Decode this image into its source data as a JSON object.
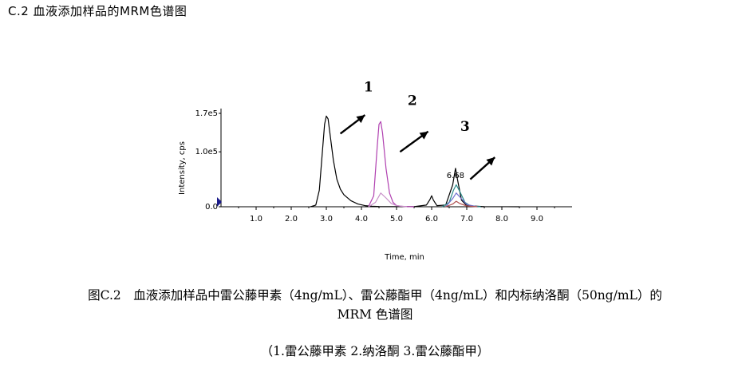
{
  "header": {
    "title": "C.2   血液添加样品的MRM色谱图"
  },
  "chart_data": {
    "type": "line",
    "xlabel": "Time, min",
    "ylabel": "Intensity, cps",
    "xlim": [
      0,
      10
    ],
    "ylim": [
      0,
      170000
    ],
    "x_ticks": [
      "1.0",
      "2.0",
      "3.0",
      "4.0",
      "5.0",
      "6.0",
      "7.0",
      "8.0",
      "9.0"
    ],
    "y_ticks": [
      {
        "value": 0,
        "label": "0.0"
      },
      {
        "value": 100000,
        "label": "1.0e5"
      },
      {
        "value": 170000,
        "label": "1.7e5"
      }
    ],
    "series": [
      {
        "color": "#000000",
        "x": [
          2.55,
          2.7,
          2.8,
          2.9,
          2.95,
          3.0,
          3.05,
          3.1,
          3.2,
          3.3,
          3.4,
          3.5,
          3.7,
          3.9,
          4.1,
          4.3,
          4.5,
          4.7,
          5.0,
          5.5,
          5.85,
          5.95,
          6.0,
          6.05,
          6.15,
          6.4,
          6.6,
          6.68,
          6.75,
          6.85,
          7.0,
          7.5,
          8.5
        ],
        "y": [
          0,
          3000,
          30000,
          110000,
          150000,
          165000,
          160000,
          135000,
          85000,
          50000,
          32000,
          22000,
          11000,
          5000,
          2000,
          800,
          500,
          300,
          200,
          200,
          3000,
          13000,
          20000,
          12000,
          2000,
          3000,
          40000,
          70000,
          45000,
          12000,
          2000,
          300,
          0
        ]
      },
      {
        "color": "#b040b0",
        "x": [
          4.2,
          4.35,
          4.45,
          4.5,
          4.55,
          4.6,
          4.7,
          4.8,
          4.9,
          5.0,
          5.2,
          5.5
        ],
        "y": [
          0,
          20000,
          110000,
          150000,
          155000,
          135000,
          70000,
          25000,
          8000,
          2000,
          500,
          0
        ]
      },
      {
        "color": "#c890c8",
        "x": [
          4.2,
          4.4,
          4.55,
          4.7,
          4.85,
          5.0,
          5.3
        ],
        "y": [
          0,
          8000,
          25000,
          16000,
          6000,
          2000,
          0
        ]
      },
      {
        "color": "#2a8a8a",
        "x": [
          6.3,
          6.5,
          6.62,
          6.7,
          6.8,
          6.95,
          7.1,
          7.4
        ],
        "y": [
          0,
          8000,
          30000,
          40000,
          28000,
          8000,
          1500,
          0
        ]
      },
      {
        "color": "#7070d0",
        "x": [
          6.4,
          6.6,
          6.7,
          6.8,
          7.0,
          7.3
        ],
        "y": [
          0,
          15000,
          25000,
          18000,
          4000,
          0
        ]
      },
      {
        "color": "#b05050",
        "x": [
          6.4,
          6.6,
          6.7,
          6.8,
          7.0,
          7.3
        ],
        "y": [
          0,
          5000,
          10000,
          6000,
          1500,
          0
        ]
      }
    ],
    "peak_labels": [
      {
        "text": "1",
        "x": 4.2,
        "y": 2.1
      },
      {
        "text": "2",
        "x": 5.45,
        "y": 1.85
      },
      {
        "text": "3",
        "x": 6.95,
        "y": 1.38
      }
    ],
    "arrows": [
      {
        "from": [
          3.4,
          133000
        ],
        "to": [
          4.1,
          167000
        ]
      },
      {
        "from": [
          5.1,
          100000
        ],
        "to": [
          5.9,
          137000
        ]
      },
      {
        "from": [
          7.1,
          50000
        ],
        "to": [
          7.8,
          90000
        ]
      }
    ],
    "data_labels": [
      {
        "text": "6.68",
        "x": 6.68,
        "y": 52000
      }
    ]
  },
  "caption": {
    "line1": "图C.2　血液添加样品中雷公藤甲素（4ng/mL）、雷公藤酯甲（4ng/mL）和内标纳洛酮（50ng/mL）的",
    "line2": "MRM 色谱图",
    "legend": "（1.雷公藤甲素  2.纳洛酮  3.雷公藤酯甲）"
  },
  "colors": {
    "axis": "#000000",
    "marker": "#1a1a8a"
  }
}
